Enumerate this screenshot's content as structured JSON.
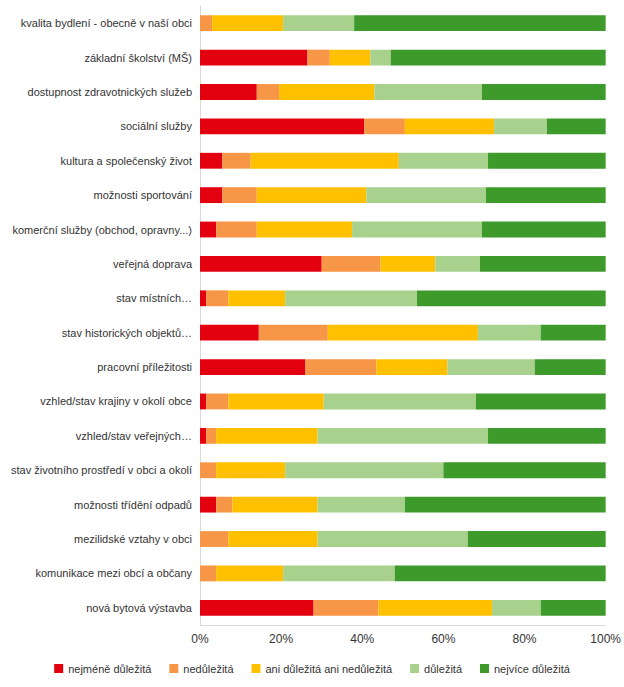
{
  "chart_data": {
    "type": "bar",
    "orientation": "horizontal",
    "stacked": true,
    "grid": false,
    "legend": "bottom",
    "categories": [
      "kvalita bydlení - obecně v naší obci",
      "základní školství (MŠ)",
      "dostupnost zdravotnických služeb",
      "sociální služby",
      "kultura a společenský život",
      "možnosti sportování",
      "komerční služby (obchod, opravny...)",
      "veřejná doprava",
      "stav místních…",
      "stav historických objektů…",
      "pracovní příležitosti",
      "vzhled/stav krajiny v okolí obce",
      "vzhled/stav veřejných…",
      "stav životního prostředí v obci a okolí",
      "možnosti třídění odpadů",
      "mezilidské vztahy v obci",
      "komunikace mezi obcí a občany",
      "nová bytová výstavba"
    ],
    "series": [
      {
        "name": "nejméně důležitá",
        "color": "#e3000f",
        "values": [
          0,
          26.5,
          14,
          40.5,
          5.5,
          5.5,
          4,
          30,
          1.5,
          14.5,
          26,
          1.5,
          1.5,
          0,
          4,
          0,
          0,
          28
        ]
      },
      {
        "name": "nedůležitá",
        "color": "#f79646",
        "values": [
          3,
          5.5,
          5.5,
          10,
          7,
          8.5,
          10,
          14.5,
          5.5,
          17,
          17.5,
          5.5,
          2.5,
          4,
          4,
          7,
          4,
          16
        ]
      },
      {
        "name": "ani důležitá ani nedůležitá",
        "color": "#ffc000",
        "values": [
          17.5,
          10,
          23.5,
          22,
          36.5,
          27,
          23.5,
          13.5,
          14,
          37,
          17.5,
          23.5,
          25,
          17,
          21,
          22,
          16.5,
          28
        ]
      },
      {
        "name": "důležitá",
        "color": "#a9d18e",
        "values": [
          17.5,
          5,
          26.5,
          13,
          22,
          29.5,
          32,
          11,
          32.5,
          15.5,
          21.5,
          37.5,
          42,
          39,
          21.5,
          37,
          27.5,
          12
        ]
      },
      {
        "name": "nejvíce důležitá",
        "color": "#3d9a2b",
        "values": [
          62,
          53,
          30.5,
          14.5,
          29,
          29.5,
          30.5,
          31,
          46.5,
          16,
          17.5,
          32,
          29,
          40,
          49.5,
          34,
          52,
          16
        ]
      }
    ],
    "xlim": [
      0,
      100
    ],
    "xticks": [
      {
        "value": 0,
        "label": "0%"
      },
      {
        "value": 20,
        "label": "20%"
      },
      {
        "value": 40,
        "label": "40%"
      },
      {
        "value": 60,
        "label": "60%"
      },
      {
        "value": 80,
        "label": "80%"
      },
      {
        "value": 100,
        "label": "100%"
      }
    ]
  }
}
